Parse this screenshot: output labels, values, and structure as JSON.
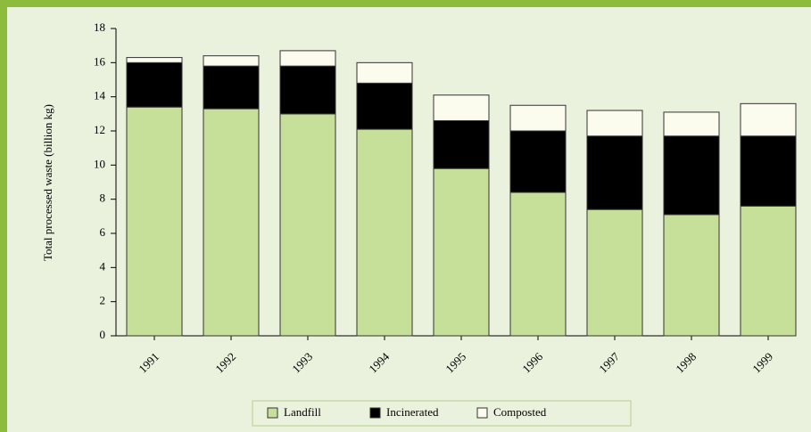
{
  "chart_data": {
    "type": "stacked_bar",
    "y_label": "Total processed waste (billion kg)",
    "categories": [
      "1991",
      "1992",
      "1993",
      "1994",
      "1995",
      "1996",
      "1997",
      "1998",
      "1999"
    ],
    "series": [
      {
        "name": "Landfill",
        "color": "#c6e09a",
        "values": [
          13.4,
          13.3,
          13.0,
          12.1,
          9.8,
          8.4,
          7.4,
          7.1,
          7.6
        ]
      },
      {
        "name": "Incinerated",
        "color": "#000000",
        "values": [
          2.6,
          2.5,
          2.8,
          2.7,
          2.8,
          3.6,
          4.3,
          4.6,
          4.1
        ]
      },
      {
        "name": "Composted",
        "color": "#fbfbee",
        "values": [
          0.3,
          0.6,
          0.9,
          1.2,
          1.5,
          1.5,
          1.5,
          1.4,
          1.9
        ]
      }
    ],
    "ylim": [
      0,
      18
    ],
    "yticks": [
      0,
      2,
      4,
      6,
      8,
      10,
      12,
      14,
      16,
      18
    ]
  }
}
